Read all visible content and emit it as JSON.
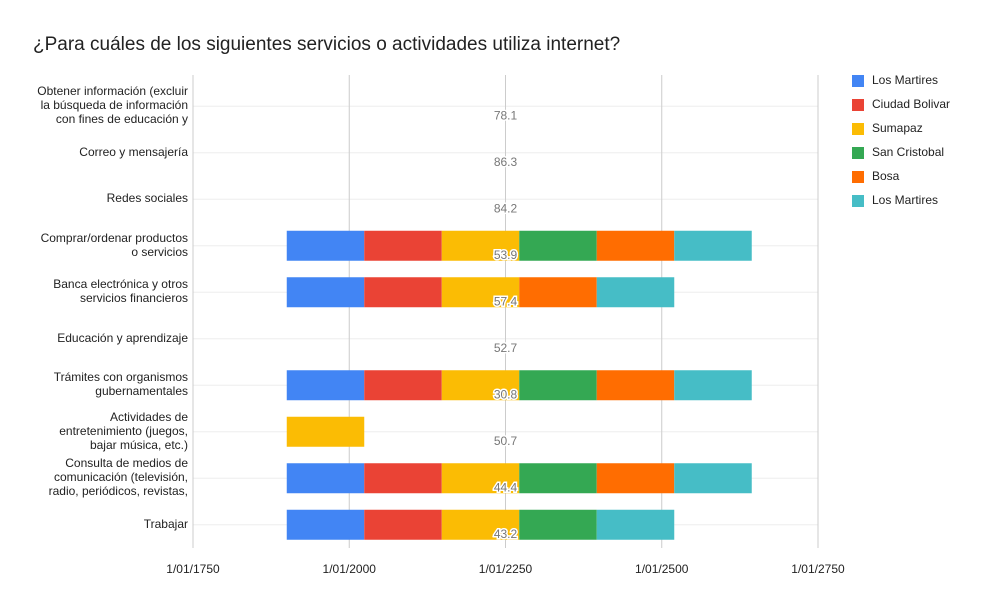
{
  "chart_data": {
    "type": "stacked_bar_horizontal",
    "title": "¿Para cuáles de los siguientes servicios o actividades utiliza internet?",
    "categories": [
      "Obtener información (excluir\nla búsqueda de información\ncon fines de educación y",
      "Correo y mensajería",
      "Redes sociales",
      "Comprar/ordenar productos\no servicios",
      "Banca electrónica y otros\nservicios financieros",
      "Educación y aprendizaje",
      "Trámites con organismos\ngubernamentales",
      "Actividades de\nentretenimiento (juegos,\nbajar música, etc.)",
      "Consulta de medios de\ncomunicación (televisión,\nradio, periódicos, revistas,",
      "Trabajar"
    ],
    "series": [
      {
        "name": "Los Martires",
        "color": "#4285f4",
        "values": [
          null,
          null,
          null,
          124,
          124,
          null,
          124,
          null,
          124,
          124
        ]
      },
      {
        "name": "Ciudad Bolivar",
        "color": "#ea4335",
        "values": [
          null,
          null,
          null,
          124,
          124,
          null,
          124,
          null,
          124,
          124
        ]
      },
      {
        "name": "Sumapaz",
        "color": "#fbbc04",
        "values": [
          null,
          null,
          null,
          124,
          124,
          null,
          124,
          124,
          124,
          124
        ]
      },
      {
        "name": "San Cristobal",
        "color": "#34a853",
        "values": [
          null,
          null,
          null,
          124,
          null,
          null,
          124,
          null,
          124,
          124
        ]
      },
      {
        "name": "Bosa",
        "color": "#ff6d01",
        "values": [
          null,
          null,
          null,
          124,
          124,
          null,
          124,
          null,
          124,
          null
        ]
      },
      {
        "name": "Los Martires",
        "color": "#46bdc6",
        "values": [
          null,
          null,
          null,
          124,
          124,
          null,
          124,
          null,
          124,
          124
        ]
      }
    ],
    "data_labels": [
      78.1,
      86.3,
      84.2,
      53.9,
      57.4,
      52.7,
      30.8,
      50.7,
      44.4,
      43.2
    ],
    "xlim": [
      -150,
      850
    ],
    "xticks": [
      {
        "value": -150,
        "label": "1/01/1750"
      },
      {
        "value": 100,
        "label": "1/01/2000"
      },
      {
        "value": 350,
        "label": "1/01/2250"
      },
      {
        "value": 600,
        "label": "1/01/2500"
      },
      {
        "value": 850,
        "label": "1/01/2750"
      }
    ],
    "grid": true,
    "legend": "right"
  }
}
